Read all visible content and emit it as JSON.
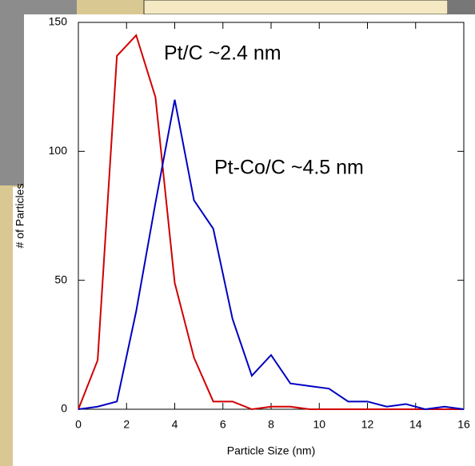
{
  "chart_data": {
    "type": "line",
    "xlabel": "Particle Size (nm)",
    "ylabel": "# of Particles",
    "x": [
      0,
      0.8,
      1.6,
      2.4,
      3.2,
      4,
      4.8,
      5.6,
      6.4,
      7.2,
      8,
      8.8,
      9.6,
      10.4,
      11.2,
      12,
      12.8,
      13.6,
      14.4,
      15.2,
      16
    ],
    "series": [
      {
        "name": "Pt/C ~2.4 nm",
        "color": "#d00000",
        "values": [
          0,
          19,
          137,
          145,
          121,
          49,
          20,
          3,
          3,
          0,
          1,
          1,
          0,
          0,
          0,
          0,
          0,
          0,
          0,
          0,
          0
        ]
      },
      {
        "name": "Pt-Co/C ~4.5 nm",
        "color": "#0000c0",
        "values": [
          0,
          1,
          3,
          38,
          80,
          120,
          81,
          70,
          35,
          13,
          21,
          10,
          9,
          8,
          3,
          3,
          1,
          2,
          0,
          1,
          0
        ]
      }
    ],
    "xlim": [
      0,
      16
    ],
    "xticks": [
      0,
      2,
      4,
      6,
      8,
      10,
      12,
      14,
      16
    ],
    "ylim": [
      0,
      150
    ],
    "yticks": [
      0,
      50,
      100,
      150
    ],
    "grid": false
  }
}
